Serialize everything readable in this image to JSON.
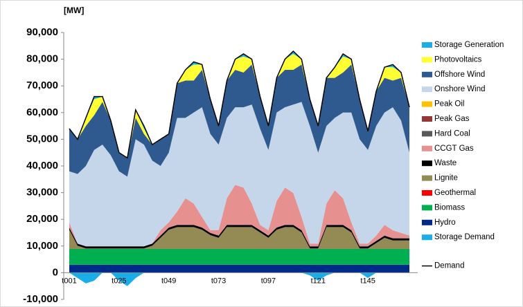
{
  "chart_data": {
    "type": "area",
    "y_label": "[MW]",
    "categories": [
      "t001",
      null,
      null,
      null,
      null,
      null,
      "t025",
      null,
      null,
      null,
      null,
      null,
      "t049",
      null,
      null,
      null,
      null,
      null,
      "t073",
      null,
      null,
      null,
      null,
      null,
      "t097",
      null,
      null,
      null,
      null,
      null,
      "t121",
      null,
      null,
      null,
      null,
      null,
      "t145",
      null,
      null,
      null,
      null,
      null
    ],
    "ylim": [
      -10000,
      90000
    ],
    "yticks": [
      {
        "value": -10000,
        "label": "-10,000"
      },
      0,
      {
        "value": 10000,
        "label": "10,000"
      },
      {
        "value": 20000,
        "label": "20,000"
      },
      {
        "value": 30000,
        "label": "30,000"
      },
      {
        "value": 40000,
        "label": "40,000"
      },
      {
        "value": 50000,
        "label": "50,000"
      },
      {
        "value": 60000,
        "label": "60,000"
      },
      {
        "value": 70000,
        "label": "70,000"
      },
      {
        "value": 80000,
        "label": "80,000"
      },
      {
        "value": 90000,
        "label": "90,000"
      }
    ],
    "grid": false,
    "legend": "right",
    "series": [
      {
        "name": "Storage Generation",
        "type": "area",
        "color": "#1aaee8",
        "values": [
          0,
          0,
          0,
          1000,
          0,
          0,
          0,
          0,
          0,
          1000,
          0,
          0,
          0,
          0,
          0,
          1000,
          0,
          0,
          0,
          0,
          0,
          1000,
          0,
          0,
          0,
          0,
          0,
          1000,
          0,
          0,
          0,
          0,
          0,
          1000,
          0,
          0,
          0,
          0,
          0,
          1000,
          0,
          0
        ]
      },
      {
        "name": "Photovoltaics",
        "type": "area",
        "color": "#ffff33",
        "values": [
          0,
          0,
          3000,
          6000,
          2000,
          0,
          0,
          0,
          3000,
          2000,
          0,
          0,
          0,
          0,
          4000,
          6000,
          2000,
          0,
          0,
          0,
          4000,
          6000,
          2000,
          0,
          0,
          0,
          4000,
          6000,
          2000,
          0,
          0,
          0,
          4000,
          6000,
          2000,
          0,
          0,
          0,
          4000,
          5000,
          2000,
          0
        ]
      },
      {
        "name": "Offshore Wind",
        "type": "area",
        "color": "#2f5a8f",
        "values": [
          16000,
          13000,
          15000,
          13000,
          16000,
          13000,
          7000,
          7000,
          8000,
          4000,
          6000,
          10000,
          7000,
          13000,
          14000,
          12000,
          14000,
          13000,
          7000,
          14000,
          14000,
          13000,
          15000,
          12000,
          9000,
          13000,
          14000,
          13000,
          14000,
          10000,
          10000,
          18000,
          15000,
          15000,
          18000,
          15000,
          7000,
          13000,
          13000,
          10000,
          16000,
          17000
        ]
      },
      {
        "name": "Onshore Wind",
        "type": "area",
        "color": "#c5d5ea",
        "values": [
          19100,
          26100,
          30100,
          36100,
          38100,
          34100,
          28100,
          26100,
          40100,
          38100,
          31100,
          24100,
          26100,
          35100,
          30100,
          34100,
          41100,
          36100,
          32100,
          30100,
          29100,
          30100,
          37100,
          36100,
          30100,
          33100,
          30100,
          33100,
          43100,
          44100,
          34100,
          29100,
          27100,
          32100,
          41100,
          39100,
          35100,
          41100,
          42100,
          46100,
          42100,
          31100
        ]
      },
      {
        "name": "Peak Oil",
        "type": "area",
        "color": "#ffc000",
        "values": [
          0,
          0,
          0,
          0,
          0,
          0,
          0,
          0,
          0,
          0,
          0,
          0,
          0,
          0,
          0,
          0,
          0,
          0,
          0,
          0,
          0,
          0,
          0,
          0,
          0,
          0,
          0,
          0,
          0,
          0,
          0,
          0,
          0,
          0,
          0,
          0,
          0,
          0,
          0,
          0,
          0,
          0
        ]
      },
      {
        "name": "Peak Gas",
        "type": "area",
        "color": "#953735",
        "values": [
          0,
          0,
          0,
          0,
          0,
          0,
          0,
          0,
          0,
          0,
          0,
          0,
          0,
          0,
          0,
          0,
          0,
          0,
          0,
          0,
          0,
          0,
          0,
          0,
          0,
          0,
          0,
          0,
          0,
          0,
          0,
          0,
          0,
          0,
          0,
          0,
          0,
          0,
          0,
          0,
          0,
          0
        ]
      },
      {
        "name": "Hard Coal",
        "type": "area",
        "color": "#595959",
        "values": [
          0,
          0,
          0,
          0,
          0,
          0,
          0,
          0,
          0,
          0,
          0,
          0,
          0,
          0,
          0,
          0,
          0,
          0,
          0,
          0,
          0,
          0,
          0,
          0,
          0,
          0,
          0,
          0,
          0,
          0,
          0,
          0,
          0,
          0,
          0,
          0,
          0,
          0,
          0,
          0,
          0,
          0
        ]
      },
      {
        "name": "CCGT Gas",
        "type": "area",
        "color": "#e6908f",
        "values": [
          2000,
          0,
          0,
          0,
          0,
          0,
          0,
          0,
          0,
          0,
          0,
          2000,
          2000,
          5000,
          10000,
          8000,
          4000,
          1000,
          2000,
          10000,
          15000,
          14000,
          8000,
          2000,
          2000,
          10000,
          14000,
          12000,
          5000,
          1000,
          1000,
          8000,
          13000,
          10000,
          3000,
          1000,
          1000,
          2000,
          4000,
          3000,
          2000,
          1000
        ]
      },
      {
        "name": "Waste",
        "type": "area",
        "color": "#000000",
        "values": [
          800,
          800,
          800,
          800,
          800,
          800,
          800,
          800,
          800,
          800,
          800,
          800,
          800,
          800,
          800,
          800,
          800,
          800,
          800,
          800,
          800,
          800,
          800,
          800,
          800,
          800,
          800,
          800,
          800,
          800,
          800,
          800,
          800,
          800,
          800,
          800,
          800,
          800,
          800,
          800,
          800,
          800
        ]
      },
      {
        "name": "Lignite",
        "type": "area",
        "color": "#948a54",
        "values": [
          7000,
          1000,
          0,
          0,
          0,
          0,
          0,
          0,
          0,
          0,
          1000,
          4000,
          7000,
          8000,
          8000,
          8000,
          7000,
          5000,
          4000,
          8000,
          8000,
          8000,
          8000,
          6000,
          4000,
          7000,
          8000,
          8000,
          6000,
          0,
          0,
          8000,
          8000,
          8000,
          6000,
          0,
          0,
          2000,
          4000,
          3000,
          3000,
          3000
        ]
      },
      {
        "name": "Geothermal",
        "type": "area",
        "color": "#ff0000",
        "values": [
          100,
          100,
          100,
          100,
          100,
          100,
          100,
          100,
          100,
          100,
          100,
          100,
          100,
          100,
          100,
          100,
          100,
          100,
          100,
          100,
          100,
          100,
          100,
          100,
          100,
          100,
          100,
          100,
          100,
          100,
          100,
          100,
          100,
          100,
          100,
          100,
          100,
          100,
          100,
          100,
          100,
          100
        ]
      },
      {
        "name": "Biomass",
        "type": "area",
        "color": "#00b050",
        "values": [
          6000,
          6000,
          6000,
          6000,
          6000,
          6000,
          6000,
          6000,
          6000,
          6000,
          6000,
          6000,
          6000,
          6000,
          6000,
          6000,
          6000,
          6000,
          6000,
          6000,
          6000,
          6000,
          6000,
          6000,
          6000,
          6000,
          6000,
          6000,
          6000,
          6000,
          6000,
          6000,
          6000,
          6000,
          6000,
          6000,
          6000,
          6000,
          6000,
          6000,
          6000,
          6000
        ]
      },
      {
        "name": "Hydro",
        "type": "area",
        "color": "#002a8a",
        "values": [
          3000,
          3000,
          3000,
          3000,
          3000,
          3000,
          3000,
          3000,
          3000,
          3000,
          3000,
          3000,
          3000,
          3000,
          3000,
          3000,
          3000,
          3000,
          3000,
          3000,
          3000,
          3000,
          3000,
          3000,
          3000,
          3000,
          3000,
          3000,
          3000,
          3000,
          3000,
          3000,
          3000,
          3000,
          3000,
          3000,
          3000,
          3000,
          3000,
          3000,
          3000,
          3000
        ]
      },
      {
        "name": "Storage Demand",
        "type": "area",
        "color": "#1aaee8",
        "values": [
          0,
          -2000,
          -4000,
          -3000,
          0,
          0,
          -3000,
          -5000,
          -2000,
          0,
          0,
          0,
          0,
          0,
          0,
          0,
          0,
          0,
          0,
          0,
          0,
          0,
          0,
          0,
          0,
          0,
          0,
          0,
          0,
          -1000,
          -3000,
          -1000,
          0,
          0,
          0,
          0,
          -2000,
          0,
          0,
          0,
          0,
          0
        ]
      },
      {
        "name": "Demand",
        "type": "line",
        "color": "#000000",
        "values": [
          54000,
          50000,
          58000,
          66000,
          66000,
          57000,
          45000,
          43000,
          61000,
          55000,
          48000,
          50000,
          52000,
          71000,
          76000,
          79000,
          78000,
          65000,
          55000,
          72000,
          80000,
          82000,
          80000,
          66000,
          55000,
          73000,
          80000,
          83000,
          80000,
          65000,
          55000,
          73000,
          77000,
          82000,
          80000,
          65000,
          53000,
          68000,
          77000,
          78000,
          75000,
          62000
        ]
      }
    ]
  }
}
